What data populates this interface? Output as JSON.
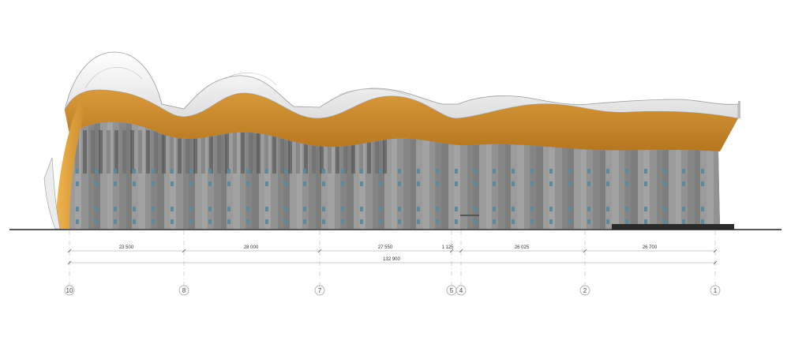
{
  "colors": {
    "roof": "#f3f3f3",
    "roof_edge": "#9a9a9a",
    "fascia": "#c98a2c",
    "fascia_dark": "#a86a16",
    "facade": "#8e8e8e",
    "facade_dark": "#6b6b6b",
    "window": "#5b8aa0",
    "ground": "#222222",
    "dim_line": "#9a9a9a"
  },
  "dimensions": {
    "segments": [
      "23 500",
      "28 000",
      "27 550",
      "1 125",
      "26 025",
      "26 700"
    ],
    "total": "132 900"
  },
  "axes": [
    "10",
    "8",
    "7",
    "5",
    "4",
    "2",
    "1"
  ]
}
